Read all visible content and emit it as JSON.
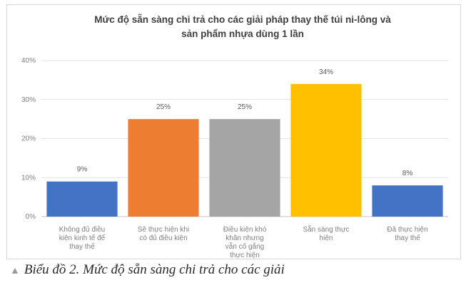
{
  "chart_data": {
    "type": "bar",
    "title": "Mức độ sẵn sàng chi trả cho các giải pháp thay thế túi ni-lông và\nsản phẩm nhựa dùng 1 lần",
    "categories": [
      "Không đủ điều kiện kinh tế để thay thế",
      "Sẽ thực hiện khi có đủ điều kiện",
      "Điều kiện khó khăn nhưng vẫn cố gắng thực hiện",
      "Sẵn sàng thực hiện",
      "Đã thực hiện thay thế"
    ],
    "category_lines": [
      [
        "Không đủ điều",
        "kiện kinh tế để",
        "thay thế"
      ],
      [
        "Sẽ thực hiện khi",
        "có đủ điều kiện"
      ],
      [
        "Điều kiện khó",
        "khăn nhưng",
        "vẫn cố gắng",
        "thực hiện"
      ],
      [
        "Sẵn sàng thực",
        "hiện"
      ],
      [
        "Đã thực hiện",
        "thay thế"
      ]
    ],
    "values": [
      9,
      25,
      25,
      34,
      8
    ],
    "data_labels": [
      "9%",
      "25%",
      "25%",
      "34%",
      "8%"
    ],
    "colors": [
      "#4472c4",
      "#ed7d31",
      "#a5a5a5",
      "#ffc000",
      "#4472c4"
    ],
    "ylim": [
      0,
      40
    ],
    "yticks": [
      0,
      10,
      20,
      30,
      40
    ],
    "ytick_labels": [
      "0%",
      "10%",
      "20%",
      "30%",
      "40%"
    ],
    "xlabel": "",
    "ylabel": "",
    "grid": true
  },
  "caption": {
    "marker": "▲",
    "text": "Biểu đồ 2. Mức độ sẵn sàng chi trả cho các giải"
  }
}
